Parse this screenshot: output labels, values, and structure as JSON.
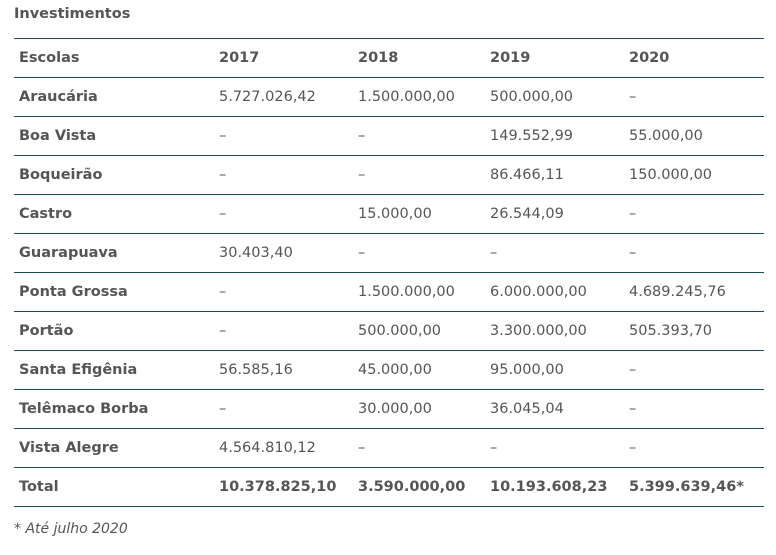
{
  "title": "Investimentos",
  "table": {
    "headers": [
      "Escolas",
      "2017",
      "2018",
      "2019",
      "2020"
    ],
    "rows": [
      [
        "Araucária",
        "5.727.026,42",
        "1.500.000,00",
        "500.000,00",
        "–"
      ],
      [
        "Boa Vista",
        "–",
        "–",
        "149.552,99",
        "55.000,00"
      ],
      [
        "Boqueirão",
        "–",
        "–",
        "86.466,11",
        "150.000,00"
      ],
      [
        "Castro",
        "–",
        "15.000,00",
        "26.544,09",
        "–"
      ],
      [
        "Guarapuava",
        "30.403,40",
        "–",
        "–",
        "–"
      ],
      [
        "Ponta Grossa",
        "–",
        "1.500.000,00",
        "6.000.000,00",
        "4.689.245,76"
      ],
      [
        "Portão",
        "–",
        "500.000,00",
        "3.300.000,00",
        "505.393,70"
      ],
      [
        "Santa Efigênia",
        "56.585,16",
        "45.000,00",
        "95.000,00",
        "–"
      ],
      [
        "Telêmaco Borba",
        "–",
        "30.000,00",
        "36.045,04",
        "–"
      ],
      [
        "Vista Alegre",
        "4.564.810,12",
        "–",
        "–",
        "–"
      ]
    ],
    "total": [
      "Total",
      "10.378.825,10",
      "3.590.000,00",
      "10.193.608,23",
      "5.399.639,46*"
    ]
  },
  "footnote": "* Até julho 2020",
  "colors": {
    "text": "#555555",
    "rule": "#1e4a55",
    "background": "#ffffff"
  }
}
